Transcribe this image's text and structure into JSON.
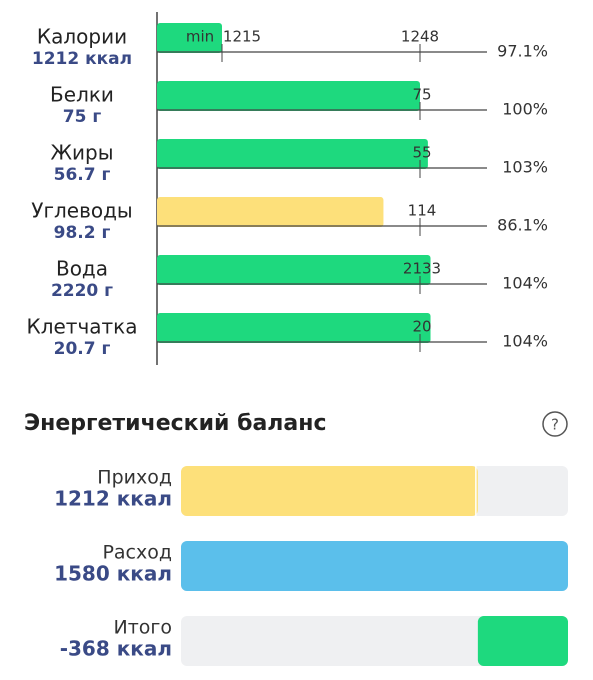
{
  "nutrients": [
    {
      "name": "Калории",
      "amount": "1212 ккал",
      "min_label": "min",
      "min_target": "1215",
      "target": "1248",
      "percent": {
        "value": 97.1,
        "label": "97.1%"
      }
    },
    {
      "name": "Белки",
      "amount": "75 г",
      "target": "75",
      "percent": {
        "value": 100,
        "label": "100%"
      }
    },
    {
      "name": "Жиры",
      "amount": "56.7 г",
      "target": "55",
      "percent": {
        "value": 103,
        "label": "103%"
      }
    },
    {
      "name": "Углеводы",
      "amount": "98.2 г",
      "target": "114",
      "percent": {
        "value": 86.1,
        "label": "86.1%"
      }
    },
    {
      "name": "Вода",
      "amount": "2220 г",
      "target": "2133",
      "percent": {
        "value": 104,
        "label": "104%"
      }
    },
    {
      "name": "Клетчатка",
      "amount": "20.7 г",
      "target": "20",
      "percent": {
        "value": 104,
        "label": "104%"
      }
    }
  ],
  "energy": {
    "title": "Энергетический баланс",
    "help": "?",
    "rows": [
      {
        "label": "Приход",
        "value": 1212,
        "value_label": "1212 ккал"
      },
      {
        "label": "Расход",
        "value": 1580,
        "value_label": "1580 ккал"
      },
      {
        "label": "Итого",
        "value": -368,
        "value_label": "-368 ккал"
      }
    ]
  }
}
